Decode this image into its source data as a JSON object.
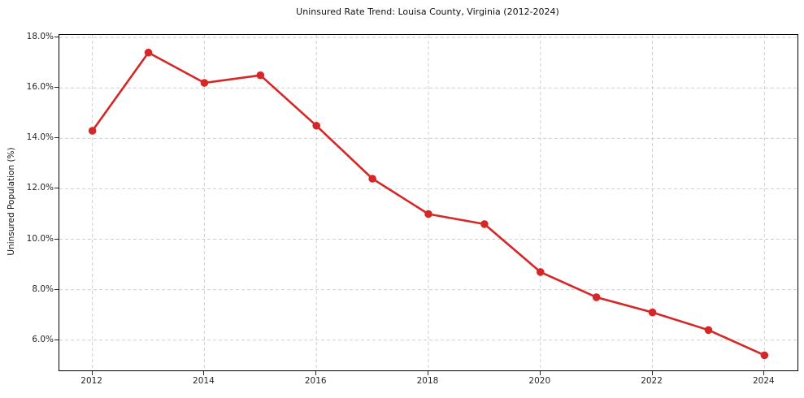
{
  "chart_data": {
    "type": "line",
    "title": "Uninsured Rate Trend: Louisa County, Virginia (2012-2024)",
    "xlabel": "",
    "ylabel": "Uninsured Population (%)",
    "x": [
      2012,
      2013,
      2014,
      2015,
      2016,
      2017,
      2018,
      2019,
      2020,
      2021,
      2022,
      2023,
      2024
    ],
    "values": [
      14.3,
      17.4,
      16.2,
      16.5,
      14.5,
      12.4,
      11.0,
      10.6,
      8.7,
      7.7,
      7.1,
      6.4,
      5.4
    ],
    "units": "percent",
    "x_ticks": [
      2012,
      2014,
      2016,
      2018,
      2020,
      2022,
      2024
    ],
    "x_tick_labels": [
      "2012",
      "2014",
      "2016",
      "2018",
      "2020",
      "2022",
      "2024"
    ],
    "y_ticks": [
      18,
      16,
      14,
      12,
      10,
      8,
      6
    ],
    "y_tick_labels": [
      "18.0%",
      "16.0%",
      "14.0%",
      "12.0%",
      "10.0%",
      "8.0%",
      "6.0%"
    ],
    "xlim": [
      2011.41,
      2024.59
    ],
    "ylim": [
      4.8,
      18.1
    ],
    "grid": true,
    "grid_style": "dashed",
    "grid_color": "#cfcfcf",
    "line_color": "#d62728",
    "marker": "circle",
    "legend": "none",
    "plot_background": "#ffffff"
  }
}
